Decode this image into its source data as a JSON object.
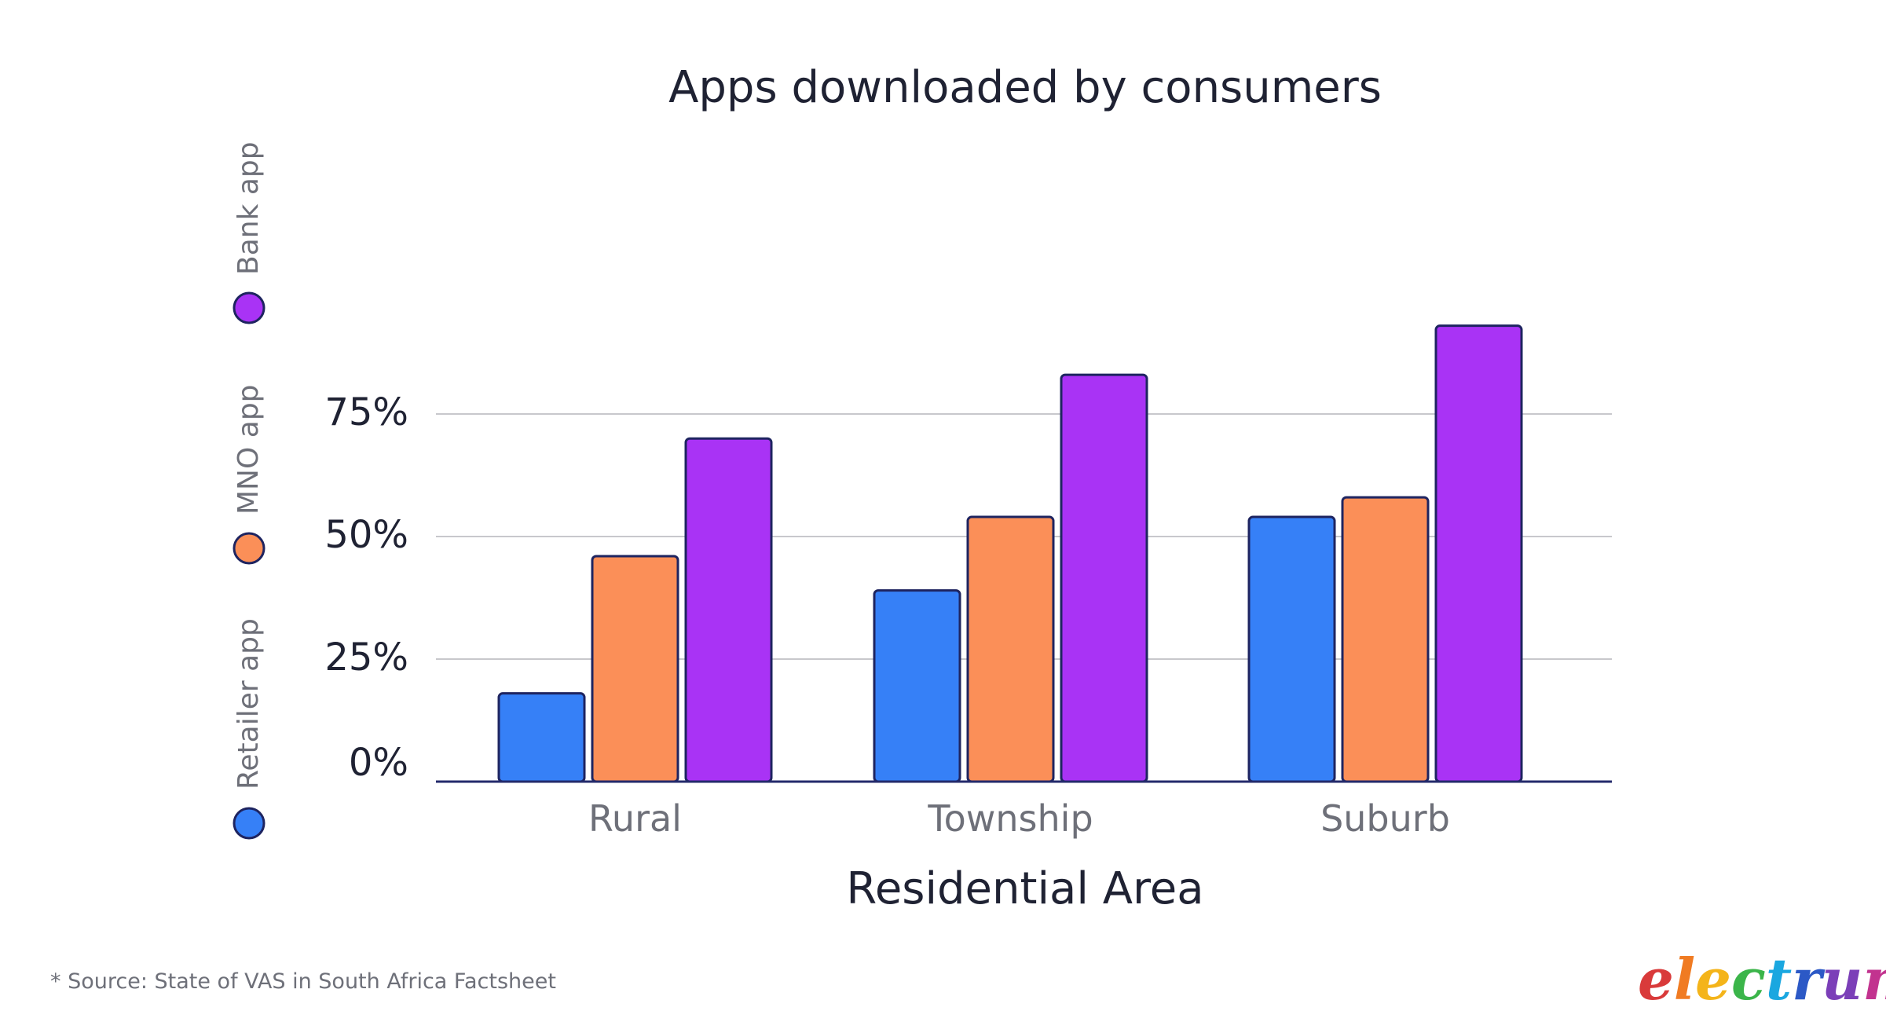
{
  "chart_data": {
    "type": "bar",
    "title": "Apps downloaded by consumers",
    "xlabel": "Residential Area",
    "ylabel": "",
    "categories": [
      "Rural",
      "Township",
      "Suburb"
    ],
    "series": [
      {
        "name": "Retailer app",
        "color": "#3680f7",
        "values": [
          18,
          39,
          54
        ]
      },
      {
        "name": "MNO app",
        "color": "#fb8f58",
        "values": [
          46,
          54,
          58
        ]
      },
      {
        "name": "Bank app",
        "color": "#a933f5",
        "values": [
          70,
          83,
          93
        ]
      }
    ],
    "yticks": [
      {
        "value": 0,
        "label": "0%"
      },
      {
        "value": 25,
        "label": "25%"
      },
      {
        "value": 50,
        "label": "50%"
      },
      {
        "value": 75,
        "label": "75%"
      }
    ],
    "ylim": [
      0,
      100
    ],
    "grid": true,
    "legend_position": "left-vertical"
  },
  "footer": {
    "source": "* Source: State of VAS in South Africa Factsheet",
    "logo": {
      "text": "electrum",
      "letter_colors": [
        "#d93a3a",
        "#f07b22",
        "#f4b41a",
        "#3bb54a",
        "#1aa7e0",
        "#2c59c6",
        "#7b3fb8",
        "#c2338f"
      ]
    }
  }
}
